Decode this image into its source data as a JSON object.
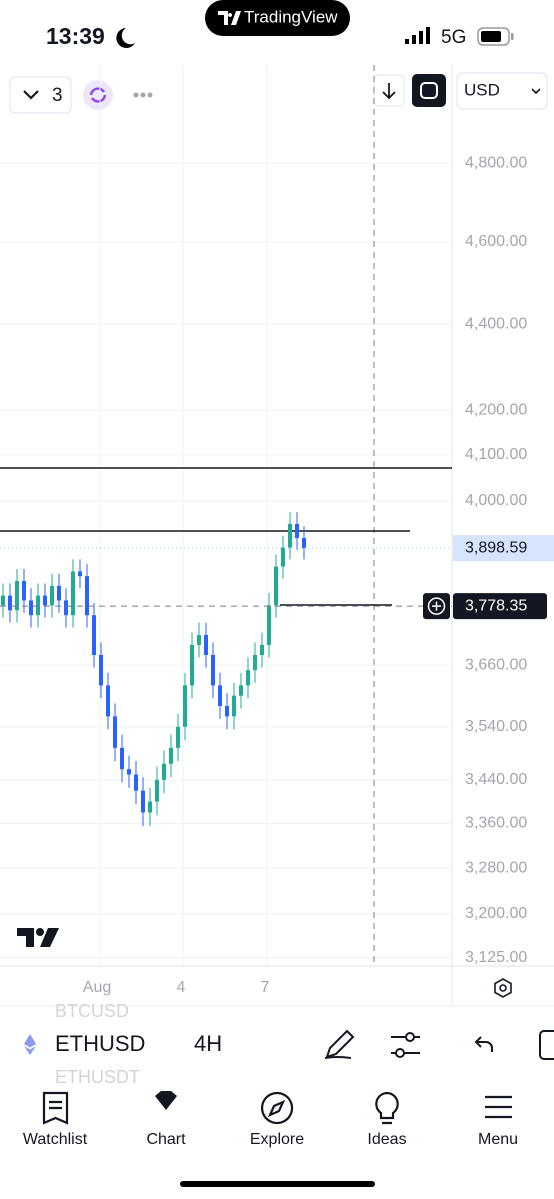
{
  "status_bar": {
    "time": "13:39",
    "network": "5G"
  },
  "island": {
    "label": "TradingView"
  },
  "toolbar": {
    "layout_count": "3",
    "currency": "USD"
  },
  "chart": {
    "type": "candlestick",
    "log_scale": true,
    "grid": true,
    "up_color": "#22ab94",
    "down_color": "#2962ff",
    "ylim": [
      3111,
      5061
    ],
    "yticks": [
      {
        "value": 4800,
        "label": "4,800.00"
      },
      {
        "value": 4600,
        "label": "4,600.00"
      },
      {
        "value": 4400,
        "label": "4,400.00"
      },
      {
        "value": 4200,
        "label": "4,200.00"
      },
      {
        "value": 4100,
        "label": "4,100.00"
      },
      {
        "value": 4000,
        "label": "4,000.00"
      },
      {
        "value": 3660,
        "label": "3,660.00"
      },
      {
        "value": 3540,
        "label": "3,540.00"
      },
      {
        "value": 3440,
        "label": "3,440.00"
      },
      {
        "value": 3360,
        "label": "3,360.00"
      },
      {
        "value": 3280,
        "label": "3,280.00"
      },
      {
        "value": 3200,
        "label": "3,200.00"
      },
      {
        "value": 3125,
        "label": "3,125.00"
      }
    ],
    "x_labels": [
      "Aug",
      "4",
      "7"
    ],
    "open": [
      3780,
      3800,
      3770,
      3830,
      3790,
      3760,
      3800,
      3780,
      3820,
      3790,
      3760,
      3850,
      3840,
      3760,
      3680,
      3620,
      3560,
      3500,
      3460,
      3450,
      3420,
      3380,
      3400,
      3440,
      3470,
      3500,
      3540,
      3620,
      3700,
      3720,
      3680,
      3620,
      3580,
      3560,
      3600,
      3620,
      3650,
      3680,
      3700,
      3780,
      3860,
      3900,
      3950,
      3920
    ],
    "high": [
      3825,
      3825,
      3855,
      3855,
      3815,
      3825,
      3825,
      3845,
      3845,
      3815,
      3875,
      3875,
      3865,
      3785,
      3705,
      3645,
      3585,
      3525,
      3485,
      3475,
      3445,
      3425,
      3465,
      3495,
      3525,
      3565,
      3645,
      3725,
      3745,
      3745,
      3705,
      3645,
      3605,
      3625,
      3645,
      3675,
      3705,
      3725,
      3805,
      3885,
      3925,
      3975,
      3975,
      3945
    ],
    "low": [
      3755,
      3745,
      3745,
      3765,
      3735,
      3735,
      3755,
      3755,
      3765,
      3735,
      3735,
      3815,
      3735,
      3655,
      3595,
      3535,
      3475,
      3435,
      3425,
      3395,
      3355,
      3355,
      3375,
      3415,
      3445,
      3475,
      3515,
      3595,
      3675,
      3655,
      3595,
      3555,
      3535,
      3535,
      3575,
      3595,
      3625,
      3655,
      3675,
      3755,
      3835,
      3875,
      3895,
      3875
    ],
    "close": [
      3800,
      3770,
      3830,
      3790,
      3760,
      3800,
      3780,
      3820,
      3790,
      3760,
      3850,
      3840,
      3760,
      3680,
      3620,
      3560,
      3500,
      3460,
      3450,
      3420,
      3380,
      3400,
      3440,
      3470,
      3500,
      3540,
      3620,
      3700,
      3720,
      3680,
      3620,
      3580,
      3560,
      3600,
      3620,
      3650,
      3680,
      3700,
      3780,
      3860,
      3900,
      3950,
      3920,
      3898.59
    ],
    "last_price": {
      "value": 3898.59,
      "label": "3,898.59"
    },
    "crosshair_price": {
      "value": 3778.35,
      "label": "3,778.35"
    }
  },
  "symbol_bar": {
    "prev_symbol": "BTCUSD",
    "symbol": "ETHUSD",
    "interval": "4H",
    "next_symbol": "ETHUSDT"
  },
  "tabs": [
    "Watchlist",
    "Chart",
    "Explore",
    "Ideas",
    "Menu"
  ]
}
